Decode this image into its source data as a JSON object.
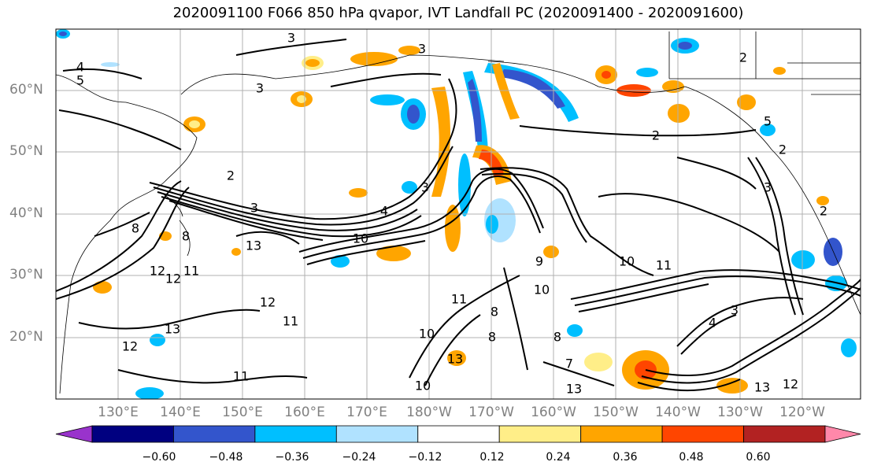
{
  "title": "2020091100 F066 850 hPa qvapor, IVT Landfall PC (2020091400 - 2020091600)",
  "latitude_labels": [
    "60°N",
    "50°N",
    "40°N",
    "30°N",
    "20°N"
  ],
  "longitude_labels": [
    "130°E",
    "140°E",
    "150°E",
    "160°E",
    "170°E",
    "180°W",
    "170°W",
    "160°W",
    "150°W",
    "140°W",
    "130°W",
    "120°W"
  ],
  "colorbar": {
    "ticks": [
      "−0.60",
      "−0.48",
      "−0.36",
      "−0.24",
      "−0.12",
      "0.12",
      "0.24",
      "0.36",
      "0.48",
      "0.60"
    ],
    "colors": [
      "#9933cc",
      "#000080",
      "#3355cc",
      "#00bfff",
      "#b0e2ff",
      "#ffffff",
      "#ffee88",
      "#ffa500",
      "#ff4500",
      "#b22222",
      "#ff88aa"
    ]
  },
  "contour_labels": [
    "3",
    "3",
    "4",
    "5",
    "3",
    "2",
    "2",
    "3",
    "4",
    "2",
    "3",
    "10",
    "13",
    "12",
    "12",
    "11",
    "8",
    "8",
    "12",
    "11",
    "13",
    "12",
    "11",
    "10",
    "8",
    "8",
    "7",
    "13",
    "10",
    "11",
    "10",
    "4",
    "3",
    "13",
    "12",
    "2",
    "5",
    "2",
    "3",
    "8",
    "9",
    "10",
    "11",
    "13"
  ]
}
